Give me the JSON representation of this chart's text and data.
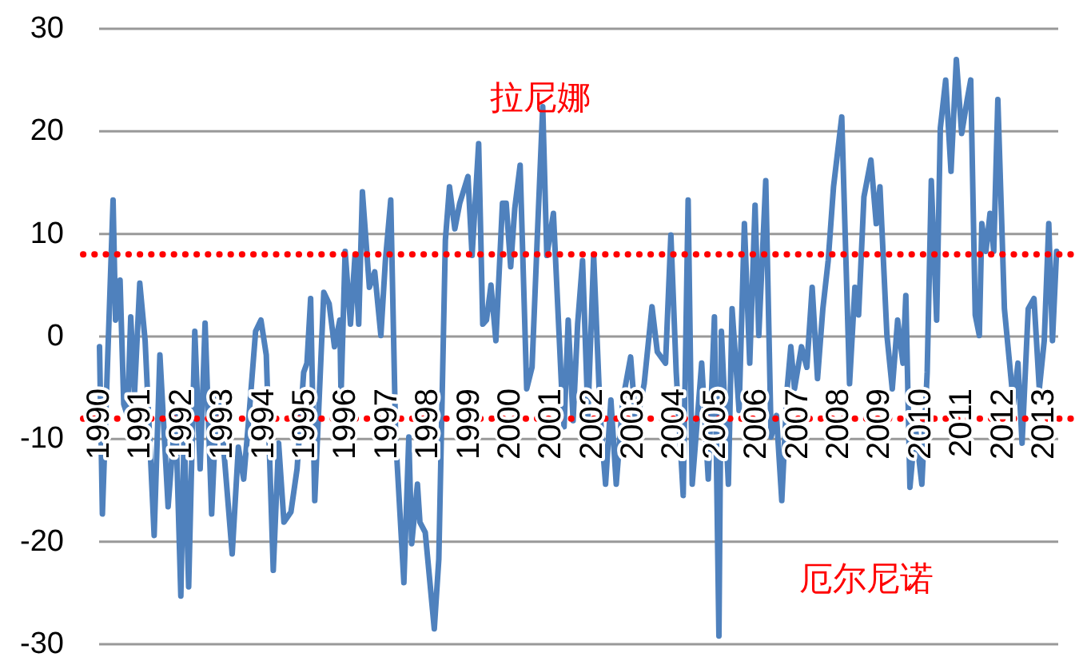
{
  "chart_data": {
    "type": "line",
    "grid": "y",
    "ylim": [
      -30,
      30
    ],
    "yticks": [
      -30,
      -20,
      -10,
      0,
      10,
      20,
      30
    ],
    "xlim": [
      1990,
      2013.35
    ],
    "xticks": [
      1990,
      1991,
      1992,
      1993,
      1994,
      1995,
      1996,
      1997,
      1998,
      1999,
      2000,
      2001,
      2002,
      2003,
      2004,
      2005,
      2006,
      2007,
      2008,
      2009,
      2010,
      2011,
      2012,
      2013
    ],
    "x": [
      1990.01,
      1990.08,
      1990.34,
      1990.4,
      1990.51,
      1990.6,
      1990.69,
      1990.77,
      1990.86,
      1990.99,
      1991.12,
      1991.34,
      1991.48,
      1991.68,
      1991.86,
      1991.99,
      1992.07,
      1992.18,
      1992.33,
      1992.46,
      1992.58,
      1992.74,
      1992.87,
      1993.0,
      1993.24,
      1993.39,
      1993.52,
      1993.65,
      1993.81,
      1993.94,
      1994.07,
      1994.24,
      1994.37,
      1994.5,
      1994.67,
      1994.82,
      1994.98,
      1995.06,
      1995.15,
      1995.25,
      1995.47,
      1995.6,
      1995.73,
      1995.86,
      1995.89,
      1995.99,
      1996.12,
      1996.23,
      1996.32,
      1996.41,
      1996.58,
      1996.71,
      1996.86,
      1996.97,
      1997.1,
      1997.22,
      1997.42,
      1997.54,
      1997.61,
      1997.75,
      1997.81,
      1997.94,
      1998.16,
      1998.27,
      1998.43,
      1998.53,
      1998.66,
      1998.78,
      1998.98,
      1999.08,
      1999.24,
      1999.34,
      1999.43,
      1999.54,
      1999.66,
      1999.82,
      1999.91,
      2000.02,
      2000.12,
      2000.25,
      2000.41,
      2000.54,
      2000.67,
      2000.8,
      2000.9,
      2001.06,
      2001.26,
      2001.32,
      2001.42,
      2001.54,
      2001.65,
      2001.77,
      2001.9,
      2002.04,
      2002.2,
      2002.33,
      2002.46,
      2002.59,
      2002.75,
      2002.94,
      2003.07,
      2003.27,
      2003.46,
      2003.59,
      2003.79,
      2003.92,
      2004.05,
      2004.22,
      2004.34,
      2004.44,
      2004.67,
      2004.83,
      2004.98,
      2005.09,
      2005.15,
      2005.32,
      2005.41,
      2005.58,
      2005.71,
      2005.84,
      2005.97,
      2006.06,
      2006.23,
      2006.36,
      2006.49,
      2006.62,
      2006.75,
      2006.84,
      2006.93,
      2007.1,
      2007.23,
      2007.36,
      2007.49,
      2007.62,
      2007.75,
      2007.88,
      2008.08,
      2008.27,
      2008.4,
      2008.49,
      2008.62,
      2008.79,
      2008.92,
      2009.01,
      2009.18,
      2009.31,
      2009.44,
      2009.57,
      2009.64,
      2009.74,
      2009.87,
      2010.03,
      2010.16,
      2010.26,
      2010.39,
      2010.48,
      2010.61,
      2010.74,
      2010.87,
      2011.0,
      2011.13,
      2011.22,
      2011.33,
      2011.43,
      2011.49,
      2011.59,
      2011.69,
      2011.78,
      2011.88,
      2012.04,
      2012.26,
      2012.37,
      2012.47,
      2012.62,
      2012.76,
      2012.89,
      2013.01,
      2013.12,
      2013.21,
      2013.31
    ],
    "series": [
      {
        "color": "#4f81bd",
        "values": [
          -1.0,
          -17.3,
          13.3,
          1.6,
          5.5,
          -6.6,
          -7.7,
          1.9,
          -5.7,
          5.2,
          -0.4,
          -19.4,
          -1.8,
          -16.6,
          -7.2,
          -25.3,
          -9.3,
          -24.4,
          0.5,
          -12.9,
          1.3,
          -17.3,
          -5.4,
          -9.3,
          -21.2,
          -10.8,
          -13.9,
          -7.7,
          0.5,
          1.6,
          -1.8,
          -22.8,
          -10.4,
          -18.1,
          -17.1,
          -12.9,
          -3.5,
          -2.6,
          3.7,
          -16.0,
          4.3,
          3.2,
          -1.0,
          1.6,
          -5.7,
          8.3,
          1.2,
          7.9,
          1.2,
          14.1,
          4.8,
          6.3,
          0.1,
          7.4,
          13.3,
          -9.8,
          -24.0,
          -9.8,
          -20.2,
          -14.4,
          -18.1,
          -19.1,
          -28.5,
          -21.7,
          9.4,
          14.6,
          10.5,
          13.0,
          15.6,
          7.9,
          18.8,
          1.2,
          1.6,
          5.0,
          -0.4,
          13.0,
          13.0,
          6.8,
          12.5,
          16.7,
          -5.1,
          -3.0,
          9.9,
          22.4,
          7.9,
          12.0,
          -5.1,
          -8.8,
          1.6,
          -8.2,
          1.2,
          7.4,
          -7.7,
          7.9,
          -7.7,
          -14.4,
          -6.2,
          -14.4,
          -6.2,
          -2.0,
          -8.8,
          -4.6,
          2.9,
          -1.5,
          -2.6,
          9.9,
          -3.5,
          -15.5,
          13.3,
          -14.4,
          -2.6,
          -13.9,
          1.9,
          -29.2,
          0.5,
          -14.4,
          2.7,
          -7.2,
          11.0,
          -2.6,
          12.8,
          0.1,
          15.2,
          -9.8,
          -7.7,
          -16.0,
          -5.1,
          -1.0,
          -5.1,
          -1.0,
          -3.0,
          4.8,
          -4.1,
          2.7,
          7.4,
          14.6,
          21.4,
          -4.6,
          4.8,
          2.1,
          13.6,
          17.2,
          11.0,
          14.6,
          0.1,
          -5.1,
          1.6,
          -2.6,
          4.0,
          -14.7,
          -8.8,
          -14.4,
          -3.5,
          15.2,
          1.6,
          20.3,
          25.0,
          16.1,
          27.0,
          19.8,
          23.0,
          25.0,
          2.1,
          0.1,
          11.0,
          8.3,
          12.0,
          8.3,
          23.1,
          2.7,
          -6.6,
          -2.6,
          -10.4,
          2.7,
          3.7,
          -5.1,
          -0.4,
          11.0,
          -0.4,
          8.3
        ]
      }
    ],
    "ref_lines": [
      {
        "axis": "y",
        "value": 8,
        "label": "拉尼娜",
        "color": "#ff0000",
        "line_style": "dotted"
      },
      {
        "axis": "y",
        "value": -8,
        "label": "厄尔尼诺",
        "color": "#ff0000",
        "line_style": "dotted"
      }
    ]
  }
}
